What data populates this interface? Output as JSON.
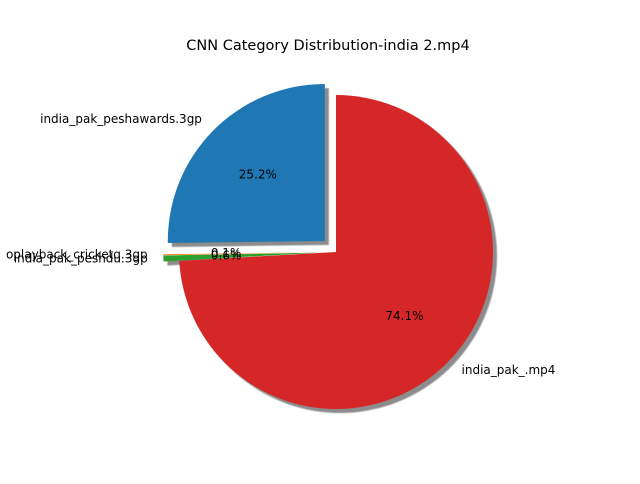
{
  "chart_data": {
    "type": "pie",
    "title": "CNN Category Distribution-india 2.mp4",
    "start_angle_deg": 90,
    "direction": "counterclockwise",
    "shadow": true,
    "slices": [
      {
        "label": "india_pak_peshawards.3gp",
        "value": 25.2,
        "pct_label": "25.2%",
        "color": "#1f77b4",
        "explode": 0.1
      },
      {
        "label": "oplayback_cricketq.3gp",
        "value": 0.1,
        "pct_label": "0.1%",
        "color": "#ff7f0e",
        "explode": 0.1
      },
      {
        "label": "india_pak_peshdu.3gp",
        "value": 0.6,
        "pct_label": "0.6%",
        "color": "#2ca02c",
        "explode": 0.1
      },
      {
        "label": "india_pak_.mp4",
        "value": 74.1,
        "pct_label": "74.1%",
        "color": "#d62728",
        "explode": 0.0
      }
    ]
  }
}
